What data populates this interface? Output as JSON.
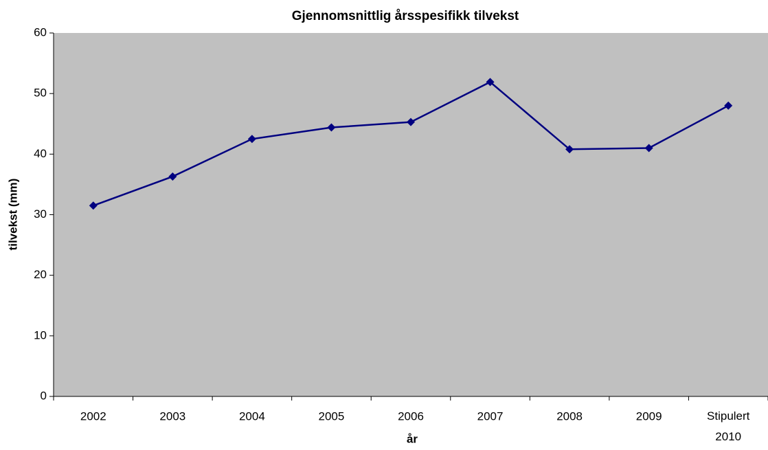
{
  "chart_data": {
    "type": "line",
    "title": "Gjennomsnittlig årsspesifikk tilvekst",
    "x_label": "år",
    "y_label": "tilvekst (mm)",
    "categories": [
      "2002",
      "2003",
      "2004",
      "2005",
      "2006",
      "2007",
      "2008",
      "2009",
      "Stipulert 2010"
    ],
    "series": [
      {
        "name": "tilvekst",
        "color": "#000080",
        "values": [
          31.5,
          36.3,
          42.5,
          44.4,
          45.3,
          51.9,
          40.8,
          41.0,
          48.0
        ]
      }
    ],
    "ylim": [
      0,
      60
    ],
    "yticks": [
      0,
      10,
      20,
      30,
      40,
      50,
      60
    ],
    "grid": false
  }
}
